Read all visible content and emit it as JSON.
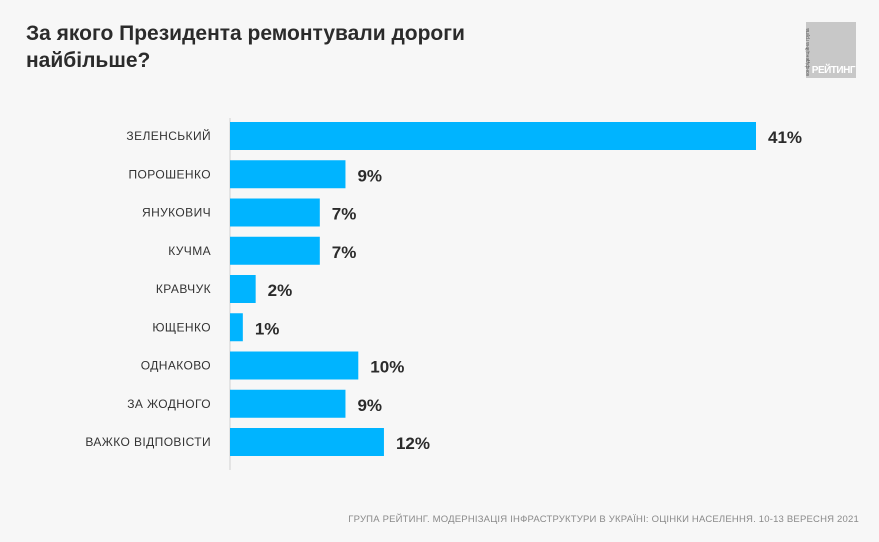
{
  "chart_data": {
    "type": "bar",
    "orientation": "horizontal",
    "title": "За якого Президента ремонтували дороги найбільше?",
    "categories": [
      "ЗЕЛЕНСЬКИЙ",
      "ПОРОШЕНКО",
      "ЯНУКОВИЧ",
      "КУЧМА",
      "КРАВЧУК",
      "ЮЩЕНКО",
      "ОДНАКОВО",
      "ЗА ЖОДНОГО",
      "ВАЖКО ВІДПОВІСТИ"
    ],
    "values": [
      41,
      9,
      7,
      7,
      2,
      1,
      10,
      9,
      12
    ],
    "data_labels": [
      "41%",
      "9%",
      "7%",
      "7%",
      "2%",
      "1%",
      "10%",
      "9%",
      "12%"
    ],
    "unit": "%",
    "bar_color": "#00b4ff",
    "grid": false
  },
  "logo": {
    "small_text": "конфіденційна група",
    "brand": "РЕЙТИНГ"
  },
  "footer": "ГРУПА РЕЙТИНГ. МОДЕРНІЗАЦІЯ ІНФРАСТРУКТУРИ В УКРАЇНІ: ОЦІНКИ НАСЕЛЕННЯ. 10-13 ВЕРЕСНЯ 2021"
}
